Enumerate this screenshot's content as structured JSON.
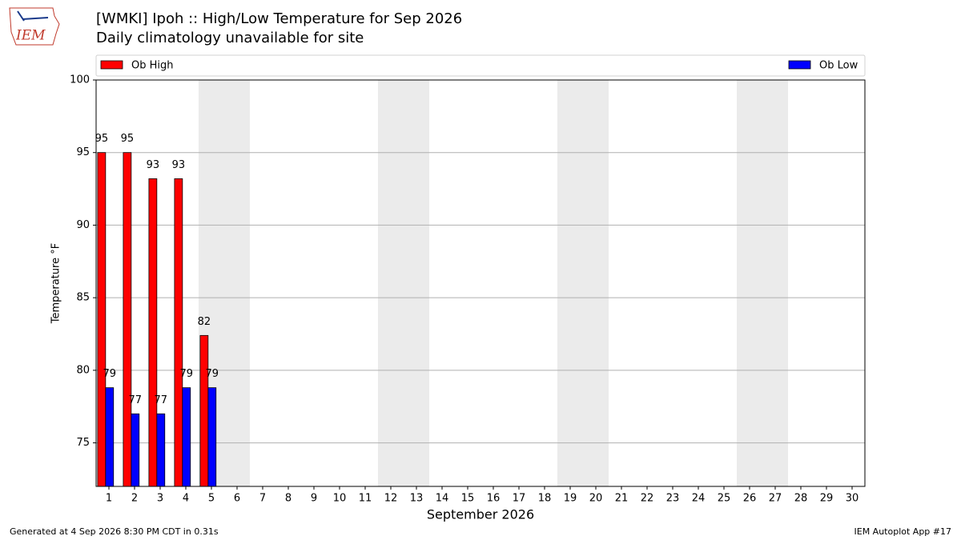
{
  "chart_data": {
    "type": "bar",
    "title": "[WMKI] Ipoh :: High/Low Temperature for Sep 2026",
    "subtitle": "Daily climatology unavailable for site",
    "logo_text": "IEM",
    "xlabel": "September 2026",
    "ylabel": "Temperature °F",
    "footer_left": "Generated at 4 Sep 2026 8:30 PM CDT in 0.31s",
    "footer_right": "IEM Autoplot App #17",
    "x": [
      1,
      2,
      3,
      4,
      5,
      6,
      7,
      8,
      9,
      10,
      11,
      12,
      13,
      14,
      15,
      16,
      17,
      18,
      19,
      20,
      21,
      22,
      23,
      24,
      25,
      26,
      27,
      28,
      29,
      30
    ],
    "xlim": [
      0.5,
      30.5
    ],
    "xticks": [
      1,
      2,
      3,
      4,
      5,
      6,
      7,
      8,
      9,
      10,
      11,
      12,
      13,
      14,
      15,
      16,
      17,
      18,
      19,
      20,
      21,
      22,
      23,
      24,
      25,
      26,
      27,
      28,
      29,
      30
    ],
    "ylim": [
      72,
      100
    ],
    "yticks": [
      75,
      80,
      85,
      90,
      95,
      100
    ],
    "grid": true,
    "shaded_days": [
      5,
      6,
      12,
      13,
      19,
      20,
      26,
      27
    ],
    "series": [
      {
        "name": "Ob High",
        "color": "#ff0000",
        "values": [
          95,
          95,
          93.2,
          93.2,
          82.4,
          null,
          null,
          null,
          null,
          null,
          null,
          null,
          null,
          null,
          null,
          null,
          null,
          null,
          null,
          null,
          null,
          null,
          null,
          null,
          null,
          null,
          null,
          null,
          null,
          null
        ],
        "value_labels": [
          "95",
          "95",
          "93",
          "93",
          "82",
          null,
          null,
          null,
          null,
          null,
          null,
          null,
          null,
          null,
          null,
          null,
          null,
          null,
          null,
          null,
          null,
          null,
          null,
          null,
          null,
          null,
          null,
          null,
          null,
          null
        ]
      },
      {
        "name": "Ob Low",
        "color": "#0000ff",
        "values": [
          78.8,
          77,
          77,
          78.8,
          78.8,
          null,
          null,
          null,
          null,
          null,
          null,
          null,
          null,
          null,
          null,
          null,
          null,
          null,
          null,
          null,
          null,
          null,
          null,
          null,
          null,
          null,
          null,
          null,
          null,
          null
        ],
        "value_labels": [
          "79",
          "77",
          "77",
          "79",
          "79",
          null,
          null,
          null,
          null,
          null,
          null,
          null,
          null,
          null,
          null,
          null,
          null,
          null,
          null,
          null,
          null,
          null,
          null,
          null,
          null,
          null,
          null,
          null,
          null,
          null
        ]
      }
    ]
  }
}
